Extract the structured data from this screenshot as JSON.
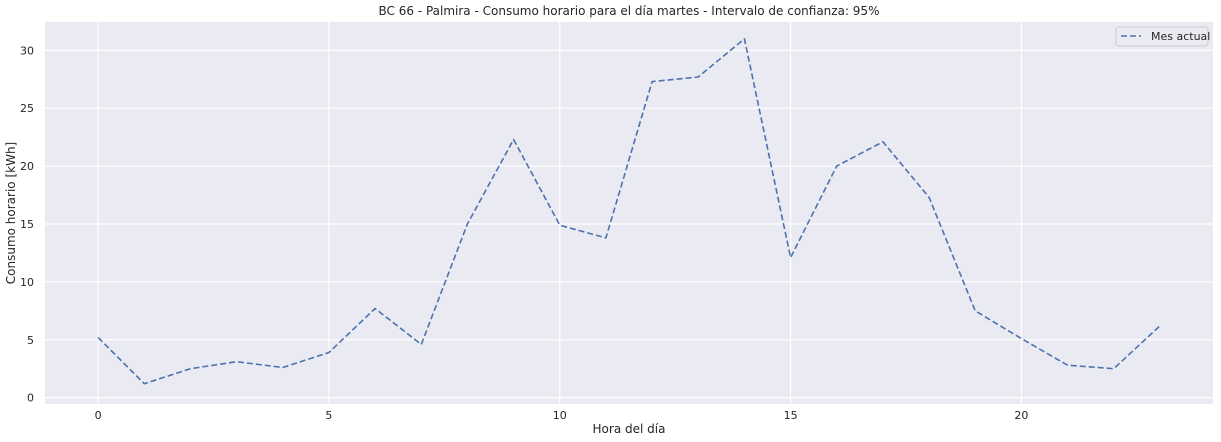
{
  "chart_data": {
    "type": "line",
    "title": "BC 66 - Palmira - Consumo horario para el día martes - Intervalo de confianza: 95%",
    "xlabel": "Hora del día",
    "ylabel": "Consumo horario [kWh]",
    "x": [
      0,
      1,
      2,
      3,
      4,
      5,
      6,
      7,
      8,
      9,
      10,
      11,
      12,
      13,
      14,
      15,
      16,
      17,
      18,
      19,
      20,
      21,
      22,
      23
    ],
    "series": [
      {
        "name": "Mes actual",
        "values": [
          5.2,
          1.2,
          2.5,
          3.1,
          2.6,
          3.9,
          7.7,
          4.6,
          15.0,
          22.3,
          14.9,
          13.8,
          27.3,
          27.7,
          31.0,
          12.1,
          20.0,
          22.1,
          17.3,
          7.5,
          5.1,
          2.8,
          2.5,
          6.2
        ],
        "color": "#4c72b0",
        "style": "dashed"
      }
    ],
    "xlim": [
      -1.15,
      24.15
    ],
    "ylim": [
      -0.55,
      32.45
    ],
    "xticks": [
      0,
      5,
      10,
      15,
      20
    ],
    "yticks": [
      0,
      5,
      10,
      15,
      20,
      25,
      30
    ],
    "grid": true,
    "legend_position": "upper right",
    "background": "#eaeaf2"
  }
}
